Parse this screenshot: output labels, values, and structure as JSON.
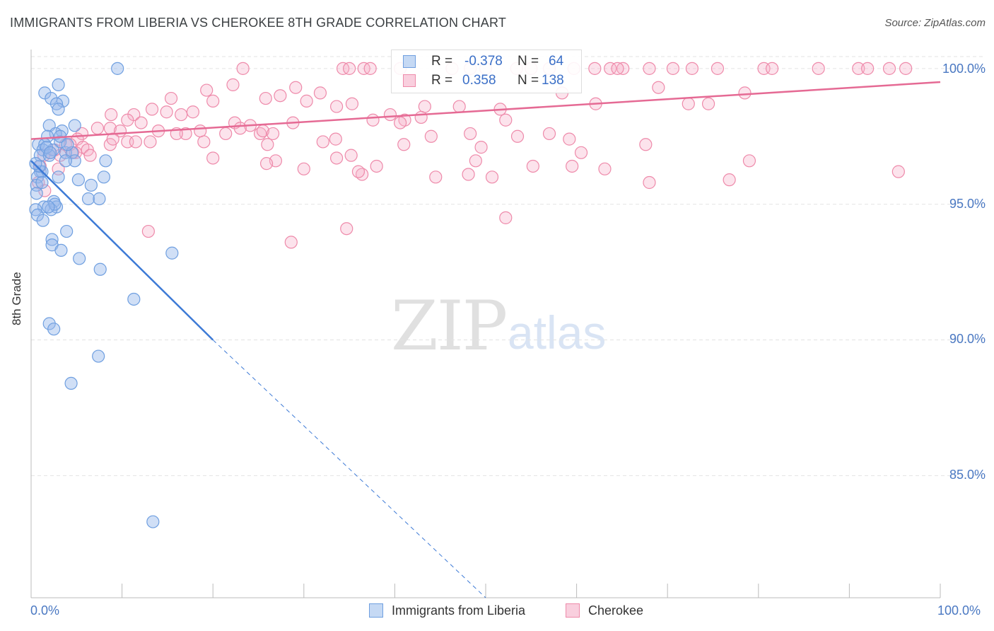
{
  "title": "IMMIGRANTS FROM LIBERIA VS CHEROKEE 8TH GRADE CORRELATION CHART",
  "source": "Source: ZipAtlas.com",
  "watermark": {
    "zip": "ZIP",
    "atlas": "atlas"
  },
  "colors": {
    "blue": "#6f9fe0",
    "blue_fill": "rgba(150,185,235,0.45)",
    "blue_line": "#3d7ad6",
    "pink": "#ee8aaa",
    "pink_fill": "rgba(245,175,200,0.35)",
    "pink_line": "#e56a94",
    "tick_text": "#4a78c2",
    "grid": "#e3e3e3"
  },
  "stats": {
    "blue": {
      "r_label": "R =",
      "r_value": "-0.378",
      "n_label": "N =",
      "n_value": "64"
    },
    "pink": {
      "r_label": "R =",
      "r_value": "0.358",
      "n_label": "N =",
      "n_value": "138"
    }
  },
  "legend": {
    "blue": "Immigrants from Liberia",
    "pink": "Cherokee"
  },
  "chart_data": {
    "type": "scatter",
    "title": "IMMIGRANTS FROM LIBERIA VS CHEROKEE 8TH GRADE CORRELATION CHART",
    "xlabel": "",
    "ylabel": "8th Grade",
    "xlim": [
      0,
      100
    ],
    "ylim": [
      80.5,
      100.7
    ],
    "x_tick_labels": [
      "0.0%",
      "100.0%"
    ],
    "y_ticks": [
      85,
      90,
      95,
      100
    ],
    "y_tick_labels": [
      "85.0%",
      "90.0%",
      "95.0%",
      "100.0%"
    ],
    "grid": true,
    "legend_position": "bottom",
    "series": [
      {
        "name": "Immigrants from Liberia",
        "color": "blue",
        "R": -0.378,
        "N": 64,
        "trend": {
          "x": [
            0,
            20
          ],
          "y": [
            96.6,
            90.0
          ],
          "dashed_to": [
            50,
            80.5
          ]
        },
        "points": [
          [
            9.5,
            100.0
          ],
          [
            3.0,
            99.4
          ],
          [
            1.5,
            99.1
          ],
          [
            2.2,
            98.9
          ],
          [
            3.5,
            98.8
          ],
          [
            2.8,
            98.7
          ],
          [
            3.0,
            98.5
          ],
          [
            2.0,
            97.9
          ],
          [
            4.8,
            97.9
          ],
          [
            3.4,
            97.7
          ],
          [
            2.7,
            97.6
          ],
          [
            1.8,
            97.5
          ],
          [
            0.8,
            97.2
          ],
          [
            1.5,
            97.2
          ],
          [
            3.2,
            97.3
          ],
          [
            2.4,
            97.0
          ],
          [
            1.3,
            97.0
          ],
          [
            3.8,
            96.9
          ],
          [
            4.5,
            96.9
          ],
          [
            1.0,
            96.8
          ],
          [
            2.0,
            96.8
          ],
          [
            4.8,
            96.6
          ],
          [
            8.2,
            96.6
          ],
          [
            3.8,
            96.6
          ],
          [
            1.0,
            96.2
          ],
          [
            1.2,
            96.2
          ],
          [
            0.7,
            96.0
          ],
          [
            3.0,
            96.0
          ],
          [
            5.2,
            95.9
          ],
          [
            8.0,
            96.0
          ],
          [
            0.6,
            95.7
          ],
          [
            6.6,
            95.7
          ],
          [
            0.6,
            95.4
          ],
          [
            6.3,
            95.2
          ],
          [
            7.5,
            95.2
          ],
          [
            2.5,
            95.1
          ],
          [
            1.4,
            94.9
          ],
          [
            2.8,
            94.9
          ],
          [
            0.5,
            94.8
          ],
          [
            2.2,
            94.8
          ],
          [
            0.7,
            94.6
          ],
          [
            1.3,
            94.4
          ],
          [
            3.9,
            94.0
          ],
          [
            2.3,
            93.7
          ],
          [
            2.3,
            93.5
          ],
          [
            3.3,
            93.3
          ],
          [
            15.5,
            93.2
          ],
          [
            5.3,
            93.0
          ],
          [
            7.6,
            92.6
          ],
          [
            11.3,
            91.5
          ],
          [
            2.0,
            90.6
          ],
          [
            2.5,
            90.4
          ],
          [
            7.4,
            89.4
          ],
          [
            4.4,
            88.4
          ],
          [
            13.4,
            83.3
          ],
          [
            1.7,
            97.1
          ],
          [
            0.9,
            96.4
          ],
          [
            2.6,
            95.0
          ],
          [
            1.9,
            94.9
          ],
          [
            3.2,
            97.5
          ],
          [
            4.0,
            97.2
          ],
          [
            0.5,
            96.5
          ],
          [
            1.2,
            95.8
          ],
          [
            2.1,
            96.9
          ]
        ]
      },
      {
        "name": "Cherokee",
        "color": "pink",
        "R": 0.358,
        "N": 138,
        "trend": {
          "x": [
            0,
            100
          ],
          "y": [
            97.4,
            99.5
          ]
        },
        "points": [
          [
            23.3,
            100.0
          ],
          [
            34.3,
            100.0
          ],
          [
            35.0,
            100.0
          ],
          [
            36.6,
            100.0
          ],
          [
            37.3,
            100.0
          ],
          [
            40.6,
            100.0
          ],
          [
            46.3,
            100.0
          ],
          [
            48.3,
            100.0
          ],
          [
            50.0,
            100.0
          ],
          [
            53.4,
            100.0
          ],
          [
            55.0,
            100.0
          ],
          [
            57.0,
            100.0
          ],
          [
            59.7,
            100.0
          ],
          [
            62.0,
            100.0
          ],
          [
            63.7,
            100.0
          ],
          [
            65.1,
            100.0
          ],
          [
            68.0,
            100.0
          ],
          [
            70.6,
            100.0
          ],
          [
            72.7,
            100.0
          ],
          [
            75.5,
            100.0
          ],
          [
            80.6,
            100.0
          ],
          [
            81.5,
            100.0
          ],
          [
            86.6,
            100.0
          ],
          [
            91.0,
            100.0
          ],
          [
            92.0,
            100.0
          ],
          [
            94.4,
            100.0
          ],
          [
            96.2,
            100.0
          ],
          [
            64.5,
            100.0
          ],
          [
            22.2,
            99.4
          ],
          [
            29.1,
            99.3
          ],
          [
            19.3,
            99.2
          ],
          [
            27.4,
            99.0
          ],
          [
            31.8,
            99.1
          ],
          [
            58.4,
            99.1
          ],
          [
            69.0,
            99.3
          ],
          [
            78.5,
            99.1
          ],
          [
            15.4,
            98.9
          ],
          [
            25.8,
            98.9
          ],
          [
            20.0,
            98.8
          ],
          [
            30.3,
            98.8
          ],
          [
            35.3,
            98.7
          ],
          [
            33.6,
            98.6
          ],
          [
            43.3,
            98.6
          ],
          [
            47.1,
            98.6
          ],
          [
            51.6,
            98.5
          ],
          [
            62.1,
            98.7
          ],
          [
            74.5,
            98.7
          ],
          [
            72.3,
            98.7
          ],
          [
            13.3,
            98.5
          ],
          [
            14.9,
            98.4
          ],
          [
            17.8,
            98.4
          ],
          [
            11.3,
            98.3
          ],
          [
            8.8,
            98.3
          ],
          [
            16.5,
            98.3
          ],
          [
            39.5,
            98.3
          ],
          [
            42.9,
            98.2
          ],
          [
            41.1,
            98.1
          ],
          [
            40.6,
            98.0
          ],
          [
            52.2,
            98.1
          ],
          [
            10.6,
            98.1
          ],
          [
            12.1,
            98.0
          ],
          [
            22.4,
            98.0
          ],
          [
            37.6,
            98.1
          ],
          [
            28.8,
            98.0
          ],
          [
            24.1,
            97.9
          ],
          [
            23.0,
            97.8
          ],
          [
            8.7,
            97.8
          ],
          [
            7.3,
            97.8
          ],
          [
            9.8,
            97.7
          ],
          [
            14.0,
            97.7
          ],
          [
            5.6,
            97.6
          ],
          [
            17.0,
            97.6
          ],
          [
            16.0,
            97.6
          ],
          [
            25.2,
            97.6
          ],
          [
            25.5,
            97.7
          ],
          [
            26.6,
            97.6
          ],
          [
            48.3,
            97.6
          ],
          [
            53.5,
            97.5
          ],
          [
            59.2,
            97.4
          ],
          [
            57.0,
            97.6
          ],
          [
            5.1,
            97.4
          ],
          [
            10.6,
            97.3
          ],
          [
            13.1,
            97.3
          ],
          [
            19.0,
            97.3
          ],
          [
            33.5,
            97.4
          ],
          [
            26.0,
            97.2
          ],
          [
            41.0,
            97.2
          ],
          [
            3.8,
            97.2
          ],
          [
            4.3,
            97.2
          ],
          [
            5.7,
            97.1
          ],
          [
            6.2,
            97.0
          ],
          [
            4.6,
            96.9
          ],
          [
            8.7,
            97.2
          ],
          [
            32.1,
            97.3
          ],
          [
            11.5,
            97.3
          ],
          [
            2.1,
            96.9
          ],
          [
            1.4,
            96.8
          ],
          [
            3.2,
            96.8
          ],
          [
            4.9,
            96.9
          ],
          [
            20.0,
            96.7
          ],
          [
            26.9,
            96.6
          ],
          [
            25.9,
            96.5
          ],
          [
            33.6,
            96.7
          ],
          [
            35.2,
            96.8
          ],
          [
            48.9,
            96.6
          ],
          [
            38.0,
            96.4
          ],
          [
            59.5,
            96.4
          ],
          [
            55.2,
            96.4
          ],
          [
            63.1,
            96.3
          ],
          [
            36.4,
            96.1
          ],
          [
            48.1,
            96.1
          ],
          [
            68.0,
            95.8
          ],
          [
            76.8,
            95.9
          ],
          [
            95.4,
            96.2
          ],
          [
            79.0,
            96.6
          ],
          [
            50.7,
            96.0
          ],
          [
            12.9,
            94.0
          ],
          [
            34.7,
            94.1
          ],
          [
            52.2,
            94.5
          ],
          [
            28.6,
            93.6
          ],
          [
            2.6,
            97.0
          ],
          [
            1.0,
            96.4
          ],
          [
            0.8,
            95.8
          ],
          [
            1.5,
            95.5
          ],
          [
            3.0,
            96.3
          ],
          [
            6.5,
            96.8
          ],
          [
            9.0,
            97.4
          ],
          [
            18.6,
            97.7
          ],
          [
            21.4,
            97.6
          ],
          [
            44.0,
            97.5
          ],
          [
            49.5,
            97.1
          ],
          [
            67.6,
            97.2
          ],
          [
            60.5,
            96.9
          ],
          [
            30.0,
            96.3
          ],
          [
            44.5,
            96.0
          ],
          [
            36.0,
            96.2
          ]
        ]
      }
    ]
  }
}
